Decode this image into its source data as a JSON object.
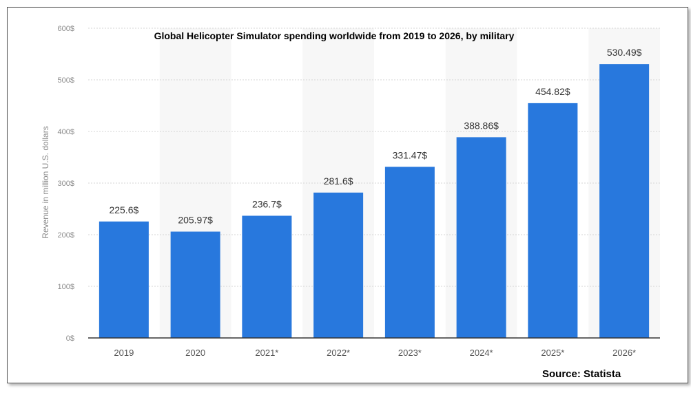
{
  "chart_data": {
    "type": "bar",
    "title": "Global Helicopter Simulator spending worldwide from 2019 to 2026, by military",
    "ylabel": "Revenue in million U.S. dollars",
    "xlabel": "",
    "categories": [
      "2019",
      "2020",
      "2021*",
      "2022*",
      "2023*",
      "2024*",
      "2025*",
      "2026*"
    ],
    "values": [
      225.6,
      205.97,
      236.7,
      281.6,
      331.47,
      388.86,
      454.82,
      530.49
    ],
    "value_labels": [
      "225.6$",
      "205.97$",
      "236.7$",
      "281.6$",
      "331.47$",
      "388.86$",
      "454.82$",
      "530.49$"
    ],
    "ylim": [
      0,
      600
    ],
    "yticks": [
      0,
      100,
      200,
      300,
      400,
      500,
      600
    ],
    "ytick_labels": [
      "0$",
      "100$",
      "200$",
      "300$",
      "400$",
      "500$",
      "600$"
    ],
    "grid": true,
    "bar_color": "#2878dd"
  },
  "source": "Source: Statista"
}
